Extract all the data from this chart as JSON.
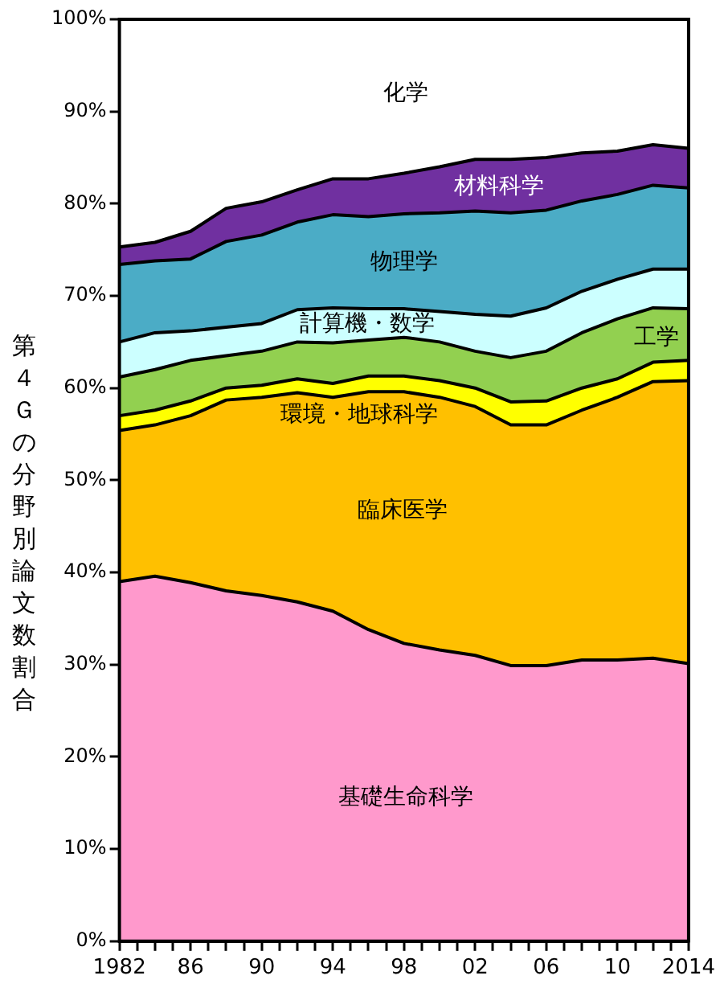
{
  "chart_data": {
    "type": "area",
    "stacked": true,
    "ylabel": "第４Ｇの分野別論文数割合",
    "x": [
      1982,
      1984,
      1986,
      1988,
      1990,
      1992,
      1994,
      1996,
      1998,
      2000,
      2002,
      2004,
      2006,
      2008,
      2010,
      2012,
      2014
    ],
    "xlim": [
      1982,
      2014
    ],
    "xticks": [
      {
        "value": 1982,
        "label": "1982"
      },
      {
        "value": 1983,
        "label": null
      },
      {
        "value": 1984,
        "label": null
      },
      {
        "value": 1985,
        "label": null
      },
      {
        "value": 1986,
        "label": "86"
      },
      {
        "value": 1987,
        "label": null
      },
      {
        "value": 1988,
        "label": null
      },
      {
        "value": 1989,
        "label": null
      },
      {
        "value": 1990,
        "label": "90"
      },
      {
        "value": 1991,
        "label": null
      },
      {
        "value": 1992,
        "label": null
      },
      {
        "value": 1993,
        "label": null
      },
      {
        "value": 1994,
        "label": "94"
      },
      {
        "value": 1995,
        "label": null
      },
      {
        "value": 1996,
        "label": null
      },
      {
        "value": 1997,
        "label": null
      },
      {
        "value": 1998,
        "label": "98"
      },
      {
        "value": 1999,
        "label": null
      },
      {
        "value": 2000,
        "label": null
      },
      {
        "value": 2001,
        "label": null
      },
      {
        "value": 2002,
        "label": "02"
      },
      {
        "value": 2003,
        "label": null
      },
      {
        "value": 2004,
        "label": null
      },
      {
        "value": 2005,
        "label": null
      },
      {
        "value": 2006,
        "label": "06"
      },
      {
        "value": 2007,
        "label": null
      },
      {
        "value": 2008,
        "label": null
      },
      {
        "value": 2009,
        "label": null
      },
      {
        "value": 2010,
        "label": "10"
      },
      {
        "value": 2011,
        "label": null
      },
      {
        "value": 2012,
        "label": null
      },
      {
        "value": 2013,
        "label": null
      },
      {
        "value": 2014,
        "label": "2014"
      }
    ],
    "ylim": [
      0,
      100
    ],
    "yticks": [
      {
        "value": 0,
        "label": "0%"
      },
      {
        "value": 10,
        "label": "10%"
      },
      {
        "value": 20,
        "label": "20%"
      },
      {
        "value": 30,
        "label": "30%"
      },
      {
        "value": 40,
        "label": "40%"
      },
      {
        "value": 50,
        "label": "50%"
      },
      {
        "value": 60,
        "label": "60%"
      },
      {
        "value": 70,
        "label": "70%"
      },
      {
        "value": 80,
        "label": "80%"
      },
      {
        "value": 90,
        "label": "90%"
      },
      {
        "value": 100,
        "label": "100%"
      }
    ],
    "legend": false,
    "series": [
      {
        "name": "基礎生命科学",
        "color": "#ff99cc",
        "values": [
          39,
          39.6,
          38.9,
          38,
          37.5,
          36.8,
          35.8,
          33.8,
          32.3,
          31.6,
          31,
          29.9,
          29.9,
          30.5,
          30.5,
          30.7,
          30.1
        ]
      },
      {
        "name": "臨床医学",
        "color": "#ffc000",
        "values": [
          16.4,
          16.4,
          18.1,
          20.7,
          21.5,
          22.7,
          23.2,
          25.8,
          27.3,
          27.4,
          27,
          26.1,
          26.1,
          27.1,
          28.5,
          30,
          30.7
        ]
      },
      {
        "name": "環境・地球科学",
        "color": "#ffff00",
        "values": [
          1.6,
          1.6,
          1.6,
          1.3,
          1.3,
          1.5,
          1.5,
          1.7,
          1.7,
          1.8,
          2,
          2.5,
          2.6,
          2.4,
          2,
          2.1,
          2.2
        ]
      },
      {
        "name": "工学",
        "color": "#92d050",
        "values": [
          4.2,
          4.4,
          4.4,
          3.5,
          3.7,
          4,
          4.4,
          3.9,
          4.2,
          4.2,
          4,
          4.8,
          5.4,
          6,
          6.5,
          5.9,
          5.6
        ]
      },
      {
        "name": "計算機・数学",
        "color": "#ccffff",
        "values": [
          3.8,
          4,
          3.2,
          3.1,
          3,
          3.5,
          3.8,
          3.4,
          3.1,
          3.3,
          4,
          4.5,
          4.7,
          4.5,
          4.3,
          4.2,
          4.3
        ]
      },
      {
        "name": "物理学",
        "color": "#4bacc6",
        "values": [
          8.4,
          7.8,
          7.8,
          9.3,
          9.6,
          9.5,
          10.1,
          10,
          10.3,
          10.7,
          11.2,
          11.2,
          10.6,
          9.8,
          9.2,
          9.1,
          8.8
        ]
      },
      {
        "name": "材料科学",
        "color": "#7030a0",
        "values": [
          1.9,
          2,
          3,
          3.6,
          3.6,
          3.5,
          3.9,
          4.1,
          4.4,
          5,
          5.6,
          5.8,
          5.7,
          5.2,
          4.7,
          4.4,
          4.3
        ]
      },
      {
        "name": "化学",
        "color": "#ffffff",
        "values": [
          24.7,
          24.2,
          23,
          20.5,
          19.8,
          18.5,
          17.3,
          17.3,
          16.7,
          16,
          15.2,
          15.2,
          15,
          14.5,
          14.3,
          13.6,
          14
        ]
      }
    ]
  }
}
